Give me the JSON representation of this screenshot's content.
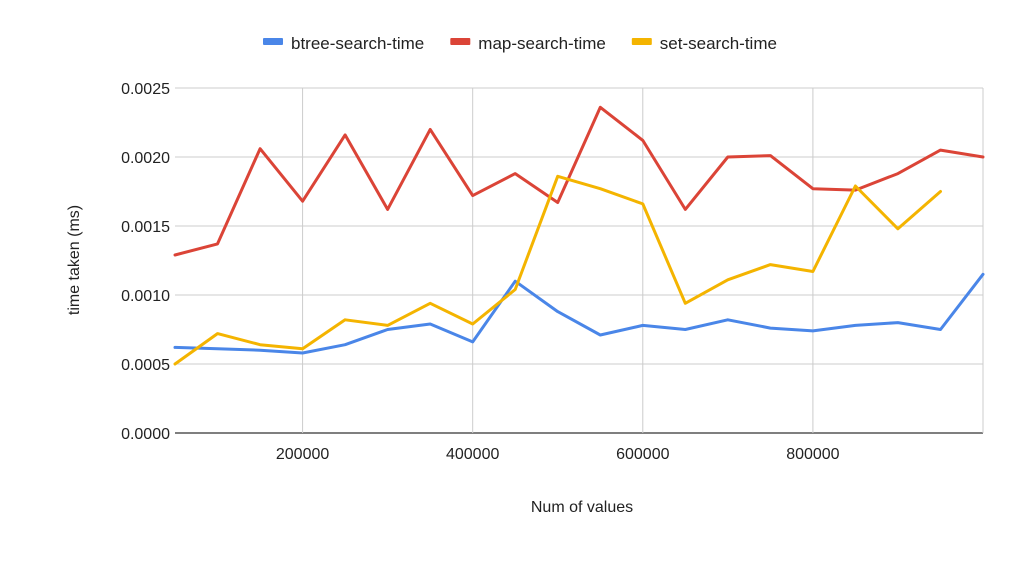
{
  "chart_data": {
    "type": "line",
    "title": "",
    "xlabel": "Num of values",
    "ylabel": "time taken (ms)",
    "xlim": [
      50000,
      1000000
    ],
    "ylim": [
      0,
      0.0025
    ],
    "x_ticks": [
      200000,
      400000,
      600000,
      800000
    ],
    "y_ticks": [
      "0.0000",
      "0.0005",
      "0.0010",
      "0.0015",
      "0.0020",
      "0.0025"
    ],
    "grid": true,
    "legend_position": "top",
    "x": [
      50000,
      100000,
      150000,
      200000,
      250000,
      300000,
      350000,
      400000,
      450000,
      500000,
      550000,
      600000,
      650000,
      700000,
      750000,
      800000,
      850000,
      900000,
      950000,
      1000000
    ],
    "series": [
      {
        "name": "btree-search-time",
        "color": "#4a86e8",
        "values": [
          0.00062,
          0.00061,
          0.0006,
          0.00058,
          0.00064,
          0.00075,
          0.00079,
          0.00066,
          0.0011,
          0.00088,
          0.00071,
          0.00078,
          0.00075,
          0.00082,
          0.00076,
          0.00074,
          0.00078,
          0.0008,
          0.00075,
          0.00115
        ]
      },
      {
        "name": "map-search-time",
        "color": "#db4437",
        "values": [
          0.00129,
          0.00137,
          0.00206,
          0.00168,
          0.00216,
          0.00162,
          0.0022,
          0.00172,
          0.00188,
          0.00167,
          0.00236,
          0.00212,
          0.00162,
          0.002,
          0.00201,
          0.00177,
          0.00176,
          0.00188,
          0.00205,
          0.002
        ]
      },
      {
        "name": "set-search-time",
        "color": "#f4b400",
        "values": [
          0.0005,
          0.00072,
          0.00064,
          0.00061,
          0.00082,
          0.00078,
          0.00094,
          0.00079,
          0.00104,
          0.00186,
          0.00177,
          0.00166,
          0.00094,
          0.00111,
          0.00122,
          0.00117,
          0.00179,
          0.00148,
          0.00175,
          null
        ]
      }
    ]
  }
}
